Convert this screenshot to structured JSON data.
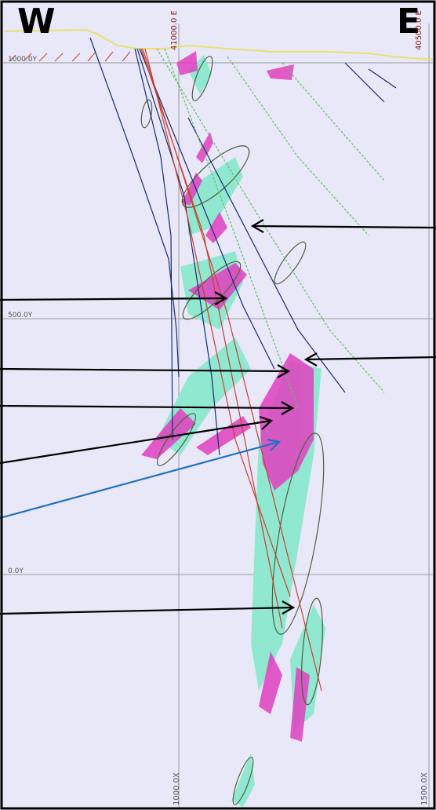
{
  "compass": {
    "west": "W",
    "east": "E"
  },
  "axes": {
    "top_left_label": "41000.0 E",
    "top_right_label": "40500.0 E",
    "bottom_left_label": "1000.0X",
    "bottom_right_label": "1500.0X",
    "y_labels": [
      "1000.0Y",
      "500.0Y",
      "0.0Y"
    ]
  },
  "colors": {
    "background": "#e8e8f8",
    "grid": "#9a9a9a",
    "topography": "#e8e070",
    "drillhole_dark": "#1a2a6e",
    "drillhole_red": "#c84030",
    "drillhole_green": "#60c060",
    "ore_magenta": "#e040c0",
    "halo_cyan": "#90e8d0",
    "outline": "#506040",
    "arrow_black": "#000000",
    "arrow_blue": "#1e70c0"
  }
}
